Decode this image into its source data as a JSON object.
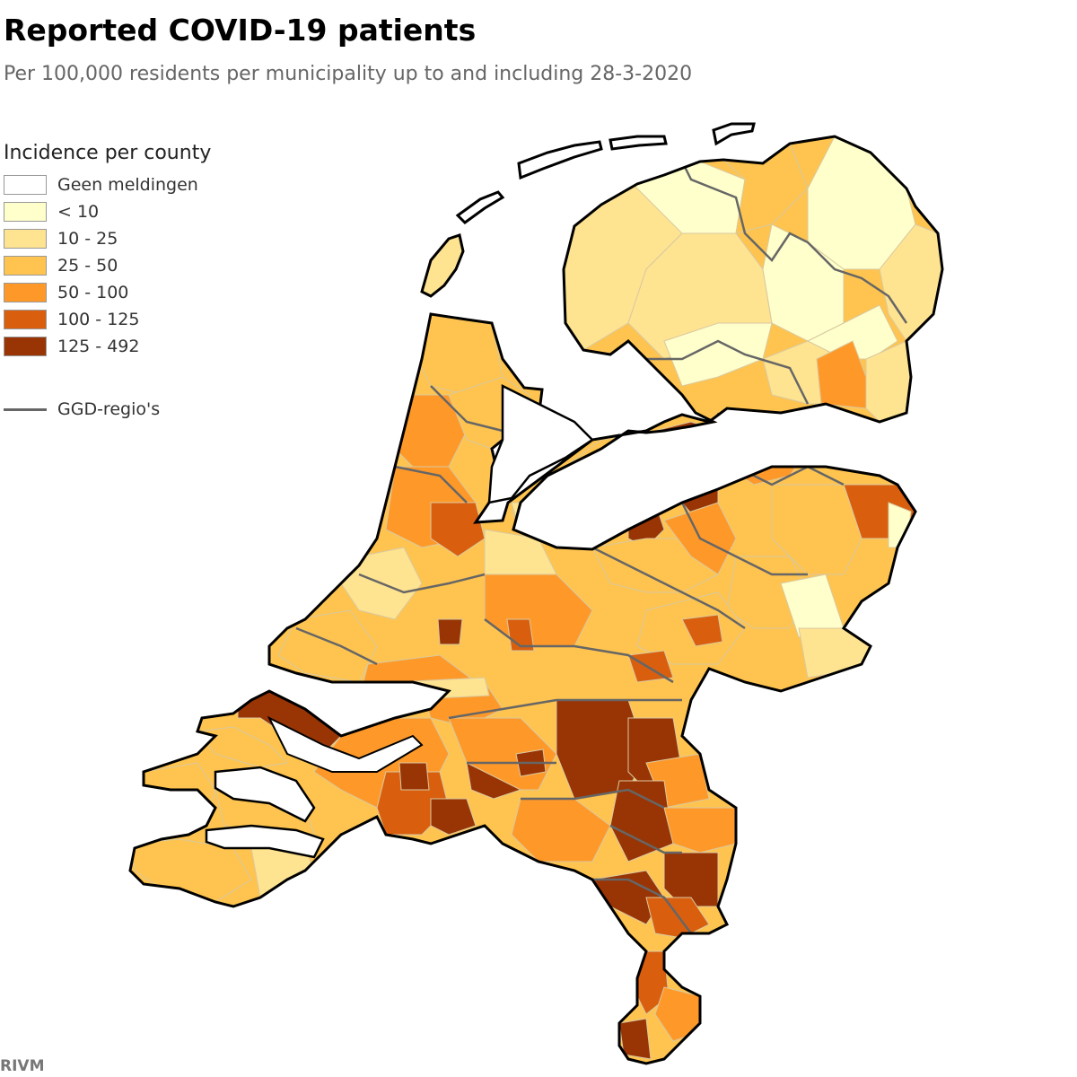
{
  "title": "Reported COVID-19 patients",
  "subtitle": "Per 100,000 residents per municipality up to and including 28-3-2020",
  "legend": {
    "title": "Incidence per county",
    "classes": [
      {
        "label": "Geen meldingen",
        "color": "#ffffff"
      },
      {
        "label": "< 10",
        "color": "#ffffcc"
      },
      {
        "label": "10 - 25",
        "color": "#fee391"
      },
      {
        "label": "25 - 50",
        "color": "#fec44f"
      },
      {
        "label": "50 - 100",
        "color": "#fe9929"
      },
      {
        "label": "100 - 125",
        "color": "#d95f0e"
      },
      {
        "label": "125 - 492",
        "color": "#993404"
      }
    ],
    "boundary_label": "GGD-regio's",
    "boundary_color": "#666666"
  },
  "source": "RIVM"
}
